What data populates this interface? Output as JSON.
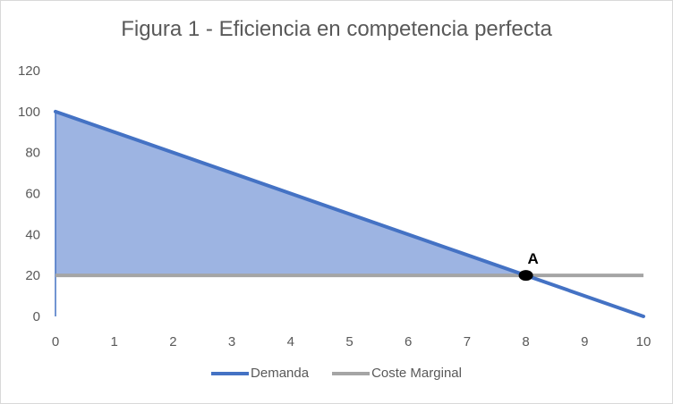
{
  "colors": {
    "demand": "#4472C4",
    "marginal_cost": "#A5A5A5",
    "surplus_fill": "#9DB4E2",
    "point": "#000000"
  },
  "chart_data": {
    "type": "line",
    "title": "Figura 1 - Eficiencia en competencia perfecta",
    "xlabel": "",
    "ylabel": "",
    "xlim": [
      0,
      10
    ],
    "ylim": [
      0,
      120
    ],
    "x_ticks": [
      0,
      1,
      2,
      3,
      4,
      5,
      6,
      7,
      8,
      9,
      10
    ],
    "y_ticks": [
      0,
      20,
      40,
      60,
      80,
      100,
      120
    ],
    "grid": false,
    "legend_position": "bottom",
    "series": [
      {
        "name": "Demanda",
        "x": [
          0,
          10
        ],
        "y": [
          100,
          0
        ]
      },
      {
        "name": "Coste Marginal",
        "x": [
          0,
          10
        ],
        "y": [
          20,
          20
        ]
      }
    ],
    "shaded_area": {
      "vertices": [
        [
          0,
          100
        ],
        [
          8,
          20
        ],
        [
          0,
          20
        ]
      ]
    },
    "annotations": [
      {
        "label": "A",
        "x": 8,
        "y": 20
      }
    ]
  }
}
